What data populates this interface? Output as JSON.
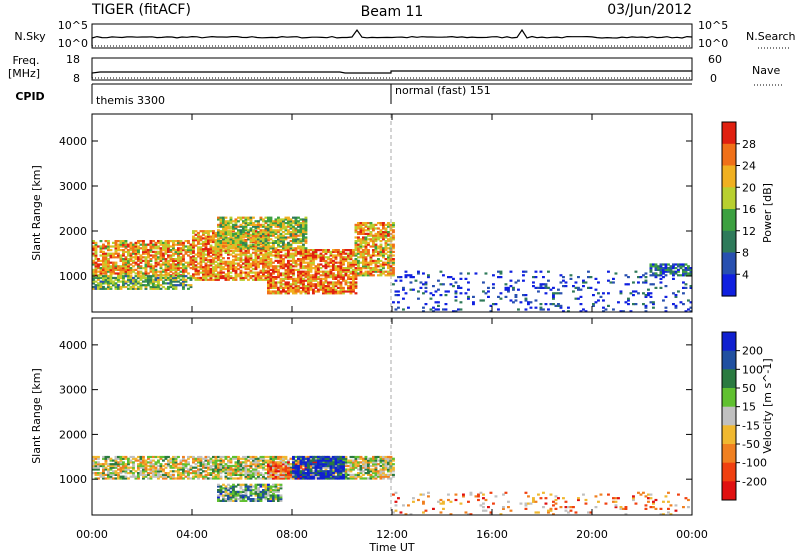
{
  "header": {
    "radar": "TIGER (fitACF)",
    "beam": "Beam 11",
    "date": "03/Jun/2012"
  },
  "top_panels": {
    "nsky": {
      "left_label": "N.Sky",
      "right_label": "N.Search",
      "left_ticks": [
        "10^5",
        "10^0"
      ],
      "right_ticks": [
        "10^5",
        "10^0"
      ]
    },
    "freq": {
      "left_label_1": "Freq.",
      "left_label_2": "[MHz]",
      "right_label": "Nave",
      "left_ticks": [
        "18",
        "8"
      ],
      "right_ticks": [
        "60",
        "0"
      ]
    },
    "cpid": {
      "label": "CPID",
      "entries": [
        {
          "time": 0,
          "label": "themis 3300"
        },
        {
          "time": 12,
          "label": "normal (fast) 151"
        }
      ]
    }
  },
  "chart_data": [
    {
      "type": "heatmap",
      "name": "power",
      "ylabel": "Slant Range [km]",
      "ylim": [
        200,
        4600
      ],
      "yticks": [
        1000,
        2000,
        3000,
        4000
      ],
      "xlim": [
        0,
        24
      ],
      "colorbar": {
        "label": "Power [dB]",
        "range": [
          0,
          32
        ],
        "ticks": [
          "4",
          "8",
          "12",
          "16",
          "20",
          "24",
          "28"
        ],
        "colors": [
          "#1020e0",
          "#2850b0",
          "#2e7a5a",
          "#3ca040",
          "#b8d030",
          "#f0b020",
          "#f07018",
          "#e02010"
        ]
      },
      "regions": [
        {
          "t0": 0.0,
          "t1": 4.0,
          "r0": 1000,
          "r1": 1800,
          "level": 0.7
        },
        {
          "t0": 0.0,
          "t1": 4.0,
          "r0": 700,
          "r1": 1000,
          "level": 0.45
        },
        {
          "t0": 4.0,
          "t1": 7.0,
          "r0": 900,
          "r1": 2000,
          "level": 0.75
        },
        {
          "t0": 7.0,
          "t1": 10.5,
          "r0": 600,
          "r1": 1600,
          "level": 0.8
        },
        {
          "t0": 5.0,
          "t1": 8.5,
          "r0": 1600,
          "r1": 2300,
          "level": 0.55
        },
        {
          "t0": 10.5,
          "t1": 12.0,
          "r0": 1000,
          "r1": 2200,
          "level": 0.7
        },
        {
          "t0": 12.0,
          "t1": 24.0,
          "r0": 200,
          "r1": 1100,
          "level": 0.1
        },
        {
          "t0": 22.3,
          "t1": 24.0,
          "r0": 1000,
          "r1": 1250,
          "level": 0.25
        }
      ]
    },
    {
      "type": "heatmap",
      "name": "velocity",
      "ylabel": "Slant Range [km]",
      "ylim": [
        200,
        4600
      ],
      "yticks": [
        1000,
        2000,
        3000,
        4000
      ],
      "xlim": [
        0,
        24
      ],
      "colorbar": {
        "label": "Velocity [m s^-1]",
        "range": [
          -250,
          250
        ],
        "ticks": [
          "200",
          "100",
          "50",
          "15",
          "-15",
          "-50",
          "-100",
          "-200"
        ],
        "colors": [
          "#e01010",
          "#f04010",
          "#f08020",
          "#f0b830",
          "#c0c0c0",
          "#60c030",
          "#2a7a40",
          "#2050a0",
          "#1020d0"
        ]
      },
      "regions": [
        {
          "t0": 0.0,
          "t1": 12.0,
          "r0": 1000,
          "r1": 1500,
          "level": 0.5
        },
        {
          "t0": 7.0,
          "t1": 9.0,
          "r0": 1000,
          "r1": 1400,
          "level": 0.3
        },
        {
          "t0": 8.0,
          "t1": 10.0,
          "r0": 1000,
          "r1": 1500,
          "level": 0.95
        },
        {
          "t0": 5.0,
          "t1": 7.5,
          "r0": 500,
          "r1": 900,
          "level": 0.65
        },
        {
          "t0": 12.0,
          "t1": 24.0,
          "r0": 200,
          "r1": 700,
          "level": 0.3
        }
      ]
    }
  ],
  "xaxis": {
    "label": "Time UT",
    "ticks": [
      "00:00",
      "04:00",
      "08:00",
      "12:00",
      "16:00",
      "20:00",
      "00:00"
    ]
  }
}
